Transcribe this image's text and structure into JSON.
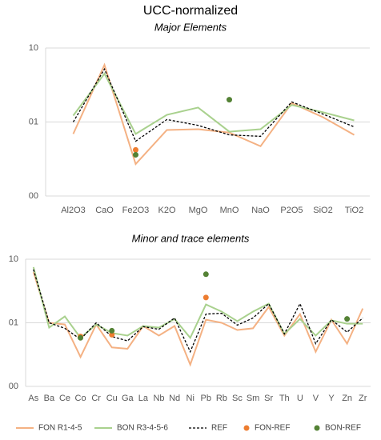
{
  "chart_data": [
    {
      "type": "line",
      "title": "UCC-normalized",
      "subtitle": "Major Elements",
      "log_scale": true,
      "grid": true,
      "categories": [
        "Al2O3",
        "CaO",
        "Fe2O3",
        "K2O",
        "MgO",
        "MnO",
        "NaO",
        "P2O5",
        "SiO2",
        "TiO2"
      ],
      "ylim": [
        0.1,
        10
      ],
      "yticks": [
        {
          "value": 10,
          "label": "10"
        },
        {
          "value": 1,
          "label": "01"
        },
        {
          "value": 0.1,
          "label": "00"
        }
      ],
      "series": [
        {
          "color": "#f4b183",
          "values": [
            0.69,
            5.9,
            0.27,
            0.78,
            0.8,
            0.72,
            0.47,
            1.8,
            1.16,
            0.67
          ]
        },
        {
          "color": "#a9d18e",
          "values": [
            1.22,
            4.5,
            0.69,
            1.25,
            1.57,
            0.74,
            0.8,
            1.7,
            1.35,
            1.05
          ]
        },
        {
          "color": "#000000",
          "dashed": true,
          "values": [
            1.0,
            5.2,
            0.55,
            1.08,
            0.9,
            0.67,
            0.64,
            1.87,
            1.28,
            0.86
          ]
        },
        {
          "color": "#ed7d31",
          "markers": true,
          "values": [
            null,
            null,
            0.42,
            null,
            null,
            null,
            null,
            null,
            null,
            null
          ]
        },
        {
          "color": "#548235",
          "markers": true,
          "values": [
            null,
            null,
            0.36,
            null,
            null,
            2.0,
            null,
            null,
            null,
            null
          ]
        }
      ]
    },
    {
      "type": "line",
      "subtitle": "Minor and trace elements",
      "log_scale": true,
      "grid": true,
      "legend": "bottom",
      "categories": [
        "As",
        "Ba",
        "Ce",
        "Co",
        "Cr",
        "Cu",
        "Ga",
        "La",
        "Nb",
        "Nd",
        "Ni",
        "Pb",
        "Rb",
        "Sc",
        "Sm",
        "Sr",
        "Th",
        "U",
        "V",
        "Y",
        "Zn",
        "Zr"
      ],
      "ylim": [
        0.1,
        10
      ],
      "yticks": [
        {
          "value": 10,
          "label": "10"
        },
        {
          "value": 1,
          "label": "01"
        },
        {
          "value": 0.1,
          "label": "00"
        }
      ],
      "series": [
        {
          "name": "FON R1-4-5",
          "color": "#f4b183",
          "values": [
            6.3,
            1.0,
            0.94,
            0.29,
            0.94,
            0.41,
            0.39,
            0.89,
            0.63,
            0.89,
            0.22,
            1.12,
            1.0,
            0.77,
            0.82,
            1.78,
            0.63,
            1.37,
            0.35,
            1.12,
            0.47,
            1.68
          ]
        },
        {
          "name": "BON R3-4-5-6",
          "color": "#a9d18e",
          "values": [
            7.5,
            0.84,
            1.26,
            0.58,
            0.94,
            0.69,
            0.63,
            0.89,
            0.84,
            1.15,
            0.58,
            1.94,
            1.5,
            1.06,
            1.5,
            2.0,
            0.67,
            1.15,
            0.63,
            1.09,
            0.97,
            0.97
          ]
        },
        {
          "name": "REF",
          "color": "#000000",
          "dashed": true,
          "values": [
            6.9,
            1.0,
            0.82,
            0.55,
            1.0,
            0.61,
            0.52,
            0.87,
            0.79,
            1.19,
            0.35,
            1.37,
            1.41,
            0.92,
            1.19,
            2.0,
            0.67,
            2.0,
            0.47,
            1.12,
            0.71,
            1.19
          ]
        },
        {
          "name": "FON-REF",
          "color": "#ed7d31",
          "markers": true,
          "values": [
            null,
            null,
            null,
            0.61,
            null,
            0.65,
            null,
            null,
            null,
            null,
            null,
            2.5,
            null,
            null,
            null,
            null,
            null,
            null,
            null,
            null,
            null,
            null
          ]
        },
        {
          "name": "BON-REF",
          "color": "#548235",
          "markers": true,
          "values": [
            null,
            null,
            null,
            0.58,
            null,
            0.75,
            null,
            null,
            null,
            null,
            null,
            5.8,
            null,
            null,
            null,
            null,
            null,
            null,
            null,
            null,
            1.15,
            null
          ]
        }
      ]
    }
  ]
}
